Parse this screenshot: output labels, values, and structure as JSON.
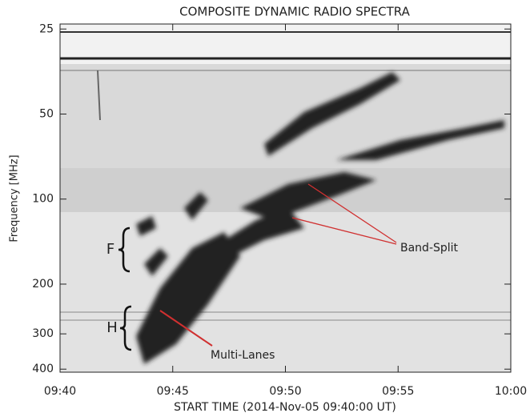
{
  "chart_data": {
    "type": "spectrogram",
    "title": "COMPOSITE DYNAMIC RADIO SPECTRA",
    "x_label": "START TIME (2014-Nov-05 09:40:00 UT)",
    "y_label": "Frequency [MHz]",
    "xlim": [
      0,
      20
    ],
    "xticks": [
      {
        "value": 0,
        "label": "09:40"
      },
      {
        "value": 5,
        "label": "09:45"
      },
      {
        "value": 10,
        "label": "09:50"
      },
      {
        "value": 15,
        "label": "09:55"
      },
      {
        "value": 20,
        "label": "10:00"
      }
    ],
    "ylim": [
      24,
      410
    ],
    "yticks": [
      25,
      50,
      100,
      200,
      300,
      400
    ],
    "y_log_scale": true,
    "annotations": [
      "F",
      "H",
      "Band-Split",
      "Multi-Lanes"
    ]
  }
}
